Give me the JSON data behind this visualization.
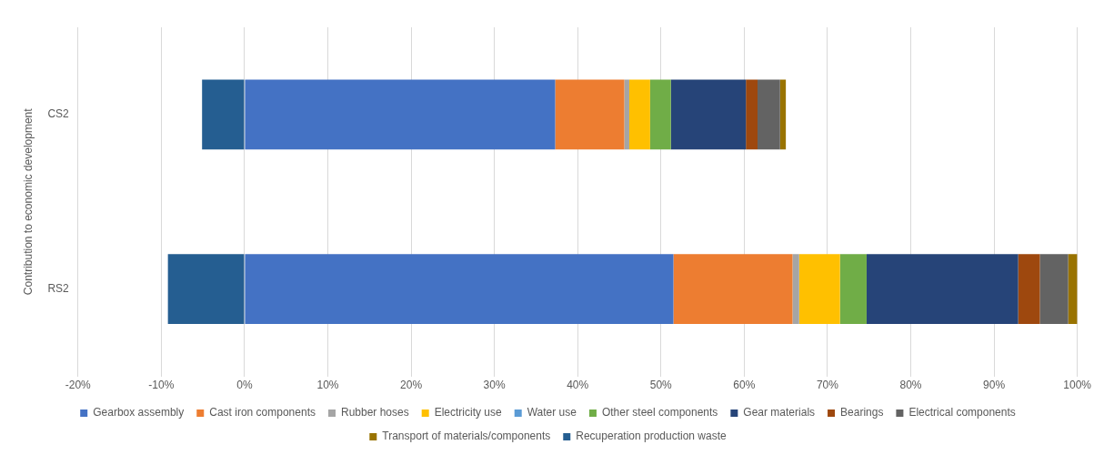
{
  "chart_data": {
    "type": "bar",
    "orientation": "horizontal",
    "stacked": true,
    "ylabel": "Contribution to economic development",
    "categories": [
      "CS2",
      "RS2"
    ],
    "xlim": [
      -20,
      100
    ],
    "xticks": [
      {
        "value": -20,
        "label": "-20%"
      },
      {
        "value": -10,
        "label": "-10%"
      },
      {
        "value": 0,
        "label": "0%"
      },
      {
        "value": 10,
        "label": "10%"
      },
      {
        "value": 20,
        "label": "20%"
      },
      {
        "value": 30,
        "label": "30%"
      },
      {
        "value": 40,
        "label": "40%"
      },
      {
        "value": 50,
        "label": "50%"
      },
      {
        "value": 60,
        "label": "60%"
      },
      {
        "value": 70,
        "label": "70%"
      },
      {
        "value": 80,
        "label": "80%"
      },
      {
        "value": 90,
        "label": "90%"
      },
      {
        "value": 100,
        "label": "100%"
      }
    ],
    "grid": "x",
    "legend": "bottom",
    "series": [
      {
        "name": "Gearbox assembly",
        "color": "#4472c4",
        "values": [
          37.3,
          51.5
        ]
      },
      {
        "name": "Cast iron components",
        "color": "#ed7d31",
        "values": [
          8.3,
          14.3
        ]
      },
      {
        "name": "Rubber hoses",
        "color": "#a5a5a5",
        "values": [
          0.6,
          0.8
        ]
      },
      {
        "name": "Electricity use",
        "color": "#ffc000",
        "values": [
          2.5,
          4.9
        ]
      },
      {
        "name": "Water use",
        "color": "#5b9bd5",
        "values": [
          0,
          0
        ]
      },
      {
        "name": "Other steel components",
        "color": "#70ad47",
        "values": [
          2.5,
          3.2
        ]
      },
      {
        "name": "Gear materials",
        "color": "#264478",
        "values": [
          9.0,
          18.2
        ]
      },
      {
        "name": "Bearings",
        "color": "#9e480e",
        "values": [
          1.4,
          2.6
        ]
      },
      {
        "name": "Electrical components",
        "color": "#636363",
        "values": [
          2.7,
          3.4
        ]
      },
      {
        "name": "Transport of materials/components",
        "color": "#997300",
        "values": [
          0.7,
          1.1
        ]
      },
      {
        "name": "Recuperation production waste",
        "color": "#255e91",
        "values": [
          -5.1,
          -9.2
        ]
      }
    ]
  }
}
